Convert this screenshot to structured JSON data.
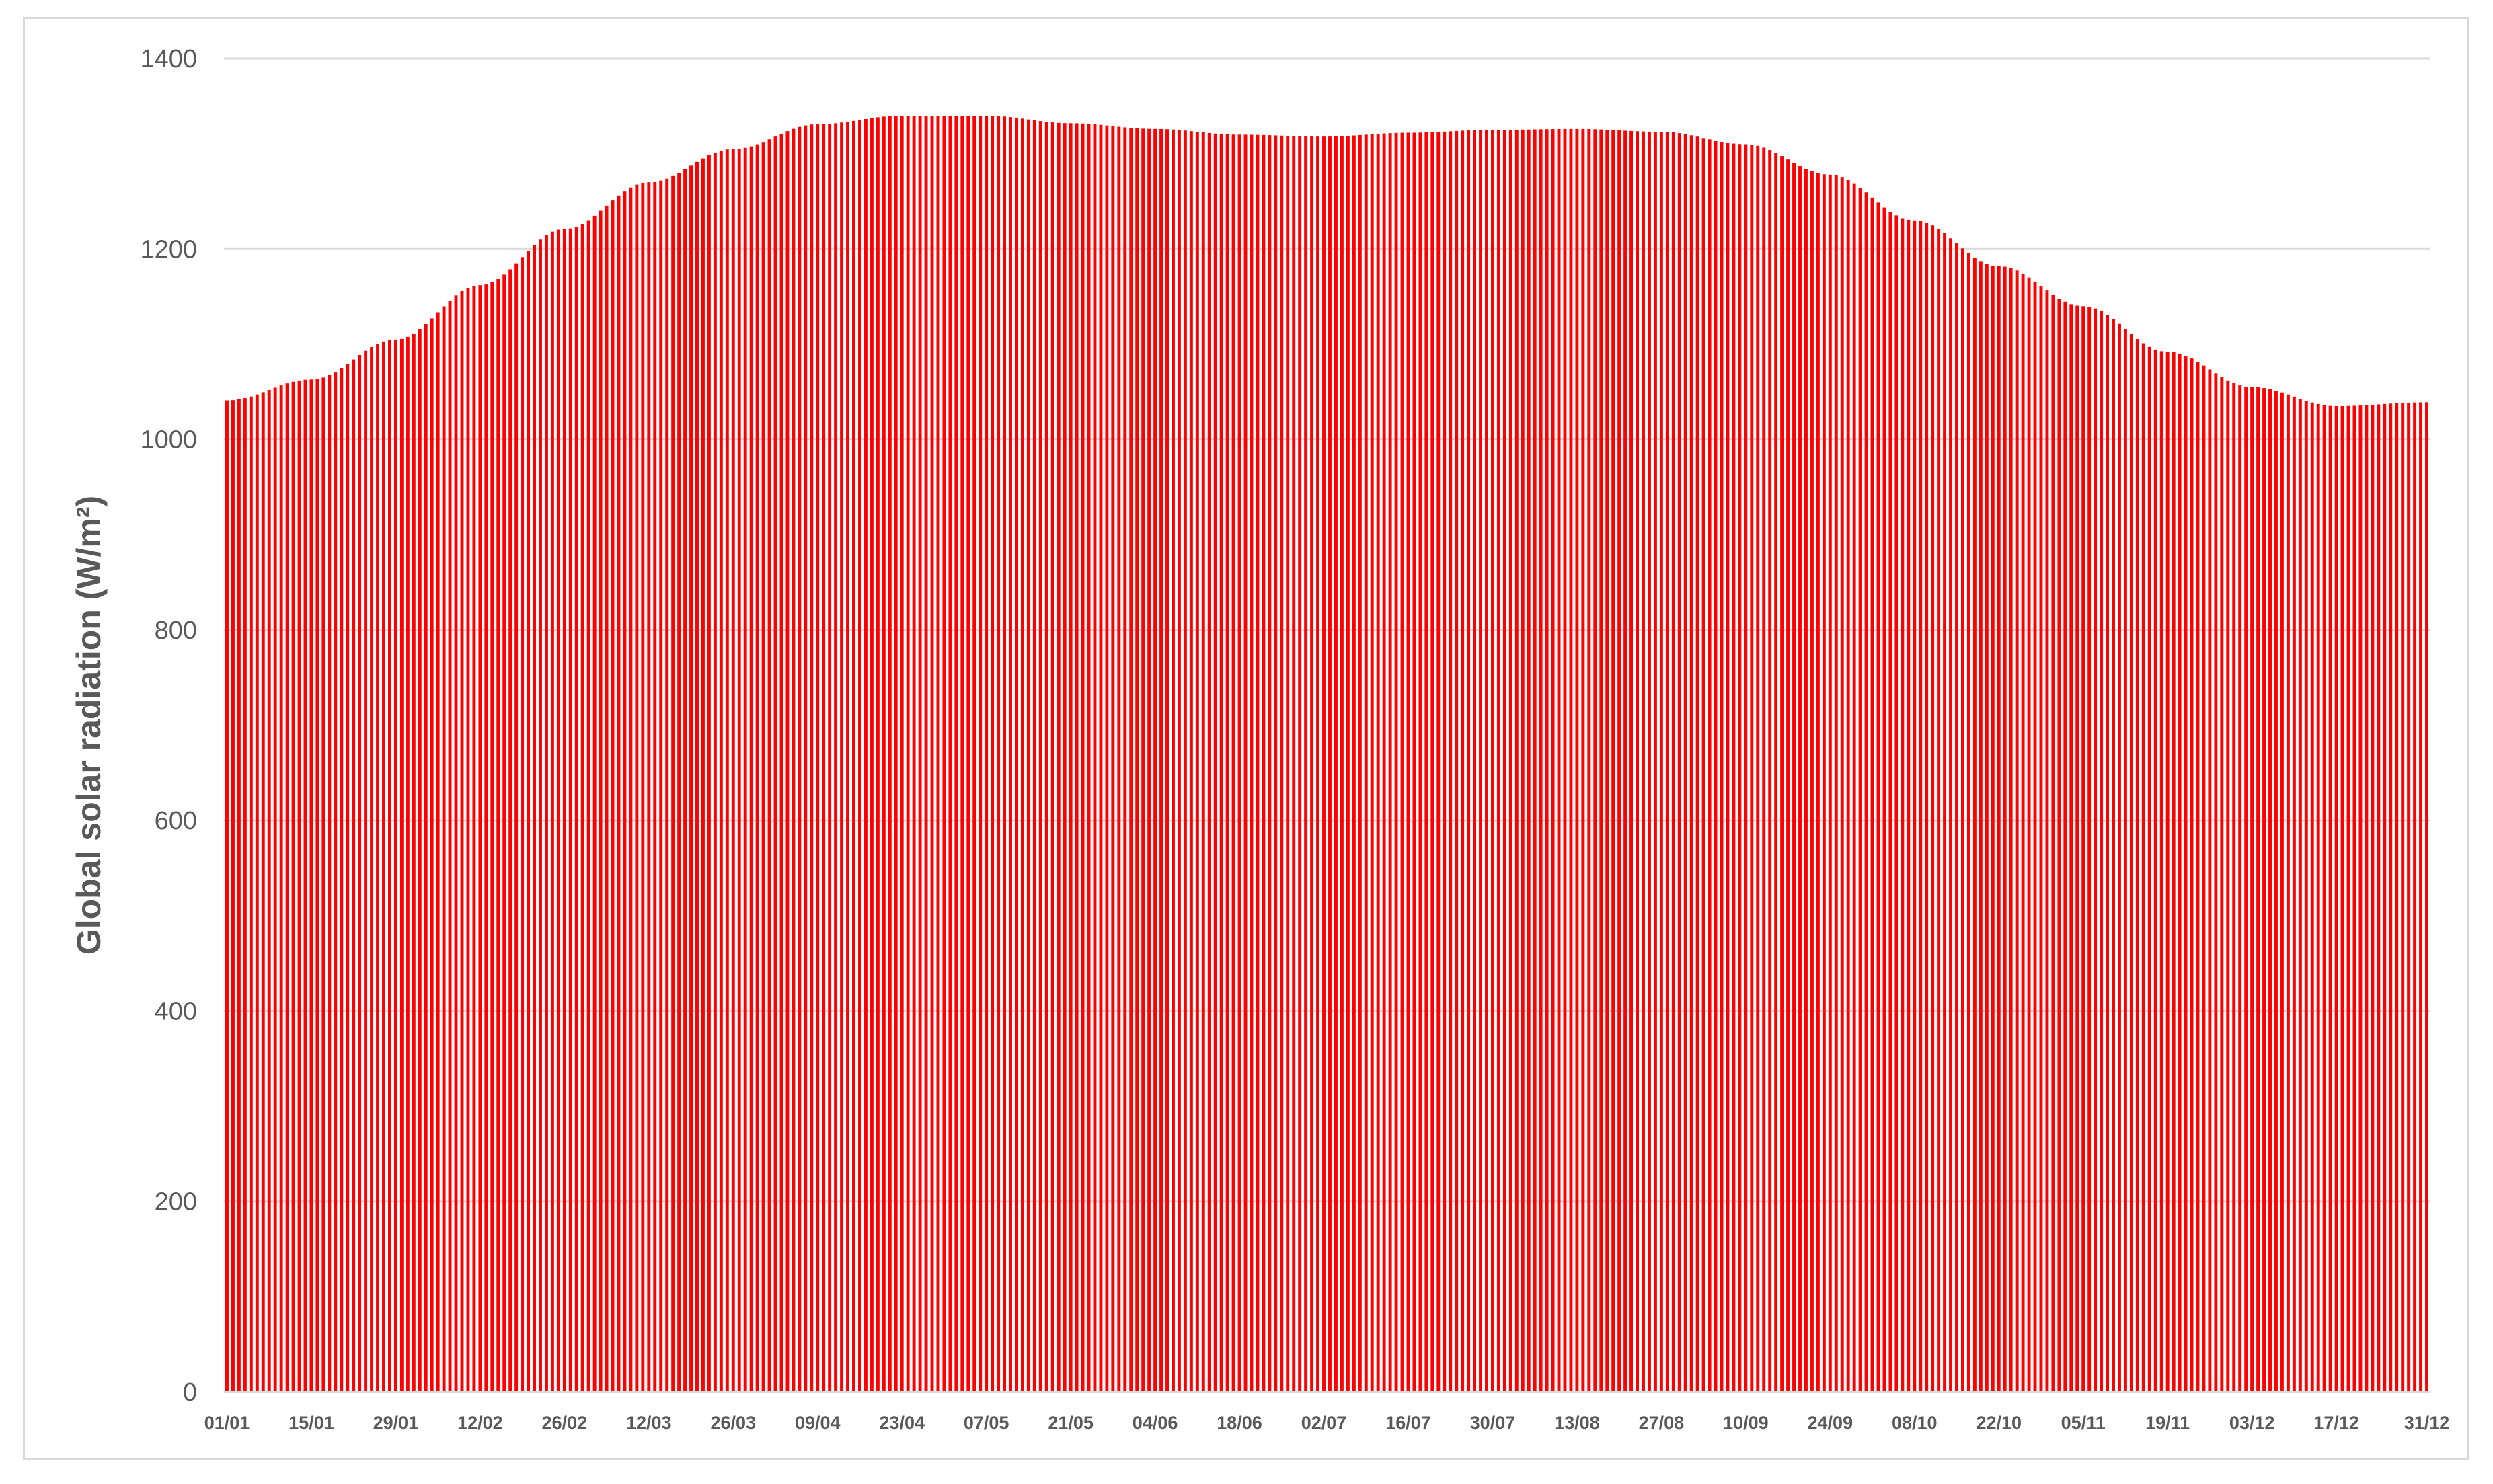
{
  "chart_data": {
    "type": "bar",
    "title": "",
    "xlabel": "",
    "ylabel": "Global solar radiation (W/m²)",
    "ylim": [
      0,
      1400
    ],
    "yticks": [
      0,
      200,
      400,
      600,
      800,
      1000,
      1200,
      1400
    ],
    "grid": true,
    "legend": "none",
    "bar_color": "#ff0000",
    "grid_color": "#d9d9d9",
    "day_count": 366,
    "xtick_labels": [
      "01/01",
      "15/01",
      "29/01",
      "12/02",
      "26/02",
      "12/03",
      "26/03",
      "09/04",
      "23/04",
      "07/05",
      "21/05",
      "04/06",
      "18/06",
      "02/07",
      "16/07",
      "30/07",
      "13/08",
      "27/08",
      "10/09",
      "24/09",
      "08/10",
      "22/10",
      "05/11",
      "19/11",
      "03/12",
      "17/12",
      "31/12"
    ],
    "series": [
      {
        "sample_dates": [
          "01/01",
          "15/01",
          "29/01",
          "12/02",
          "26/02",
          "12/03",
          "26/03",
          "09/04",
          "23/04",
          "07/05",
          "21/05",
          "04/06",
          "18/06",
          "02/07",
          "16/07",
          "30/07",
          "13/08",
          "27/08",
          "10/09",
          "24/09",
          "08/10",
          "22/10",
          "05/11",
          "19/11",
          "03/12",
          "17/12",
          "31/12"
        ],
        "values": [
          1041,
          1063,
          1105,
          1162,
          1221,
          1270,
          1305,
          1331,
          1340,
          1340,
          1332,
          1326,
          1320,
          1318,
          1322,
          1325,
          1326,
          1323,
          1310,
          1278,
          1230,
          1182,
          1140,
          1092,
          1055,
          1035,
          1039
        ]
      }
    ]
  }
}
